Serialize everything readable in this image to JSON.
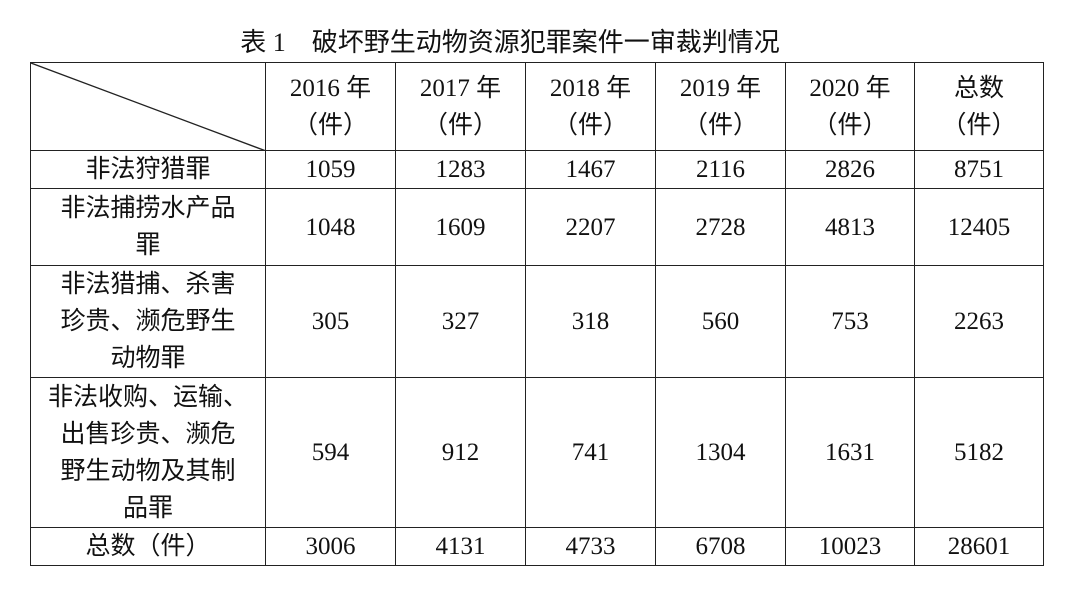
{
  "title": "表 1　破坏野生动物资源犯罪案件一审裁判情况",
  "table": {
    "header": [
      [
        "2016 年",
        "（件）"
      ],
      [
        "2017 年",
        "（件）"
      ],
      [
        "2018 年",
        "（件）"
      ],
      [
        "2019 年",
        "（件）"
      ],
      [
        "2020 年",
        "（件）"
      ],
      [
        "总数",
        "（件）"
      ]
    ],
    "rows": [
      {
        "label": [
          "非法狩猎罪"
        ],
        "cells": [
          1059,
          1283,
          1467,
          2116,
          2826,
          8751
        ]
      },
      {
        "label": [
          "非法捕捞水产品",
          "罪"
        ],
        "cells": [
          1048,
          1609,
          2207,
          2728,
          4813,
          12405
        ]
      },
      {
        "label": [
          "非法猎捕、杀害",
          "珍贵、濒危野生",
          "动物罪"
        ],
        "cells": [
          305,
          327,
          318,
          560,
          753,
          2263
        ]
      },
      {
        "label": [
          "非法收购、运输、",
          "出售珍贵、濒危",
          "野生动物及其制",
          "品罪"
        ],
        "cells": [
          594,
          912,
          741,
          1304,
          1631,
          5182
        ]
      },
      {
        "label": [
          "总数（件）"
        ],
        "cells": [
          3006,
          4131,
          4733,
          6708,
          10023,
          28601
        ]
      }
    ]
  }
}
